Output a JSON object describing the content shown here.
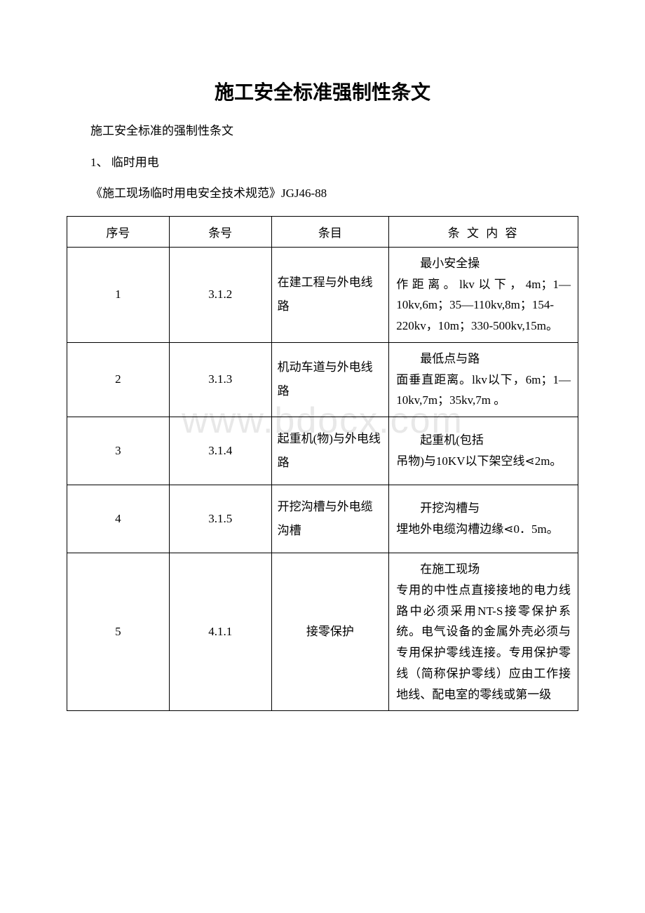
{
  "watermark": "www.bdocx.com",
  "title": "施工安全标准强制性条文",
  "subtitle": "施工安全标准的强制性条文",
  "section_num": "1、 临时用电",
  "spec_name": "《施工现场临时用电安全技术规范》JGJ46-88",
  "table": {
    "headers": {
      "col1": "序号",
      "col2": "条号",
      "col3": "条目",
      "col4": "条 文 内 容"
    },
    "rows": [
      {
        "seq": "1",
        "clause": "3.1.2",
        "item": "在建工程与外电线路",
        "content_indent": "最小安全操",
        "content_rest": "作距离。lkv以下，4m；1—10kv,6m；35—110kv,8m；154-220kv，10m；330-500kv,15m。"
      },
      {
        "seq": "2",
        "clause": "3.1.3",
        "item": "机动车道与外电线路",
        "content_indent": "最低点与路",
        "content_rest": "面垂直距离。lkv以下，6m；1—10kv,7m；35kv,7m 。"
      },
      {
        "seq": "3",
        "clause": "3.1.4",
        "item": "起重机(物)与外电线路",
        "content_indent": "起重机(包括",
        "content_rest": "吊物)与10KV以下架空线⋖2m。"
      },
      {
        "seq": "4",
        "clause": "3.1.5",
        "item": "开挖沟槽与外电缆沟槽",
        "content_indent": "开挖沟槽与",
        "content_rest": "埋地外电缆沟槽边缘⋖0．5m。"
      },
      {
        "seq": "5",
        "clause": "4.1.1",
        "item": "接零保护",
        "content_indent": "在施工现场",
        "content_rest": "专用的中性点直接接地的电力线路中必须采用NT-S接零保护系统。电气设备的金属外壳必须与专用保护零线连接。专用保护零线（简称保护零线）应由工作接地线、配电室的零线或第一级"
      }
    ]
  }
}
